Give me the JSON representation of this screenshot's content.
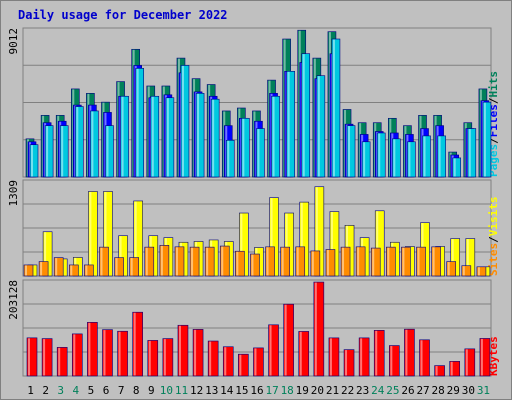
{
  "chart_data": {
    "type": "bar",
    "title": "Daily usage for December 2022",
    "days": [
      {
        "label": "1",
        "weekend": false
      },
      {
        "label": "2",
        "weekend": false
      },
      {
        "label": "3",
        "weekend": true
      },
      {
        "label": "4",
        "weekend": true
      },
      {
        "label": "5",
        "weekend": false
      },
      {
        "label": "6",
        "weekend": false
      },
      {
        "label": "7",
        "weekend": false
      },
      {
        "label": "8",
        "weekend": false
      },
      {
        "label": "9",
        "weekend": false
      },
      {
        "label": "10",
        "weekend": true
      },
      {
        "label": "11",
        "weekend": true
      },
      {
        "label": "12",
        "weekend": false
      },
      {
        "label": "13",
        "weekend": false
      },
      {
        "label": "14",
        "weekend": false
      },
      {
        "label": "15",
        "weekend": false
      },
      {
        "label": "16",
        "weekend": false
      },
      {
        "label": "17",
        "weekend": true
      },
      {
        "label": "18",
        "weekend": true
      },
      {
        "label": "19",
        "weekend": false
      },
      {
        "label": "20",
        "weekend": false
      },
      {
        "label": "21",
        "weekend": false
      },
      {
        "label": "22",
        "weekend": false
      },
      {
        "label": "23",
        "weekend": false
      },
      {
        "label": "24",
        "weekend": true
      },
      {
        "label": "25",
        "weekend": true
      },
      {
        "label": "26",
        "weekend": false
      },
      {
        "label": "27",
        "weekend": false
      },
      {
        "label": "28",
        "weekend": false
      },
      {
        "label": "29",
        "weekend": false
      },
      {
        "label": "30",
        "weekend": false
      },
      {
        "label": "31",
        "weekend": true
      }
    ],
    "panels": [
      {
        "name": "hits-files-pages",
        "ymax_label": "9012",
        "ymax": 9012,
        "legend": [
          {
            "text": "Pages",
            "color": "#00c8e0"
          },
          {
            "text": "/",
            "color": "#000000"
          },
          {
            "text": "Files",
            "color": "#0000ff"
          },
          {
            "text": "/",
            "color": "#000000"
          },
          {
            "text": "Hits",
            "color": "#00805a"
          }
        ],
        "series": [
          {
            "name": "Hits",
            "color": "#00805a",
            "values": [
              2340,
              3780,
              3780,
              5400,
              5130,
              4590,
              5850,
              7830,
              5580,
              5580,
              7290,
              6030,
              5670,
              4050,
              4230,
              4050,
              5940,
              8460,
              9000,
              7290,
              8910,
              4140,
              3330,
              3330,
              3600,
              3150,
              3780,
              3780,
              1530,
              3330,
              5400
            ]
          },
          {
            "name": "Files",
            "color": "#0000ff",
            "values": [
              2160,
              3330,
              3420,
              4410,
              4410,
              3960,
              4950,
              6840,
              4860,
              5040,
              6390,
              5220,
              4950,
              3150,
              3600,
              3420,
              5130,
              6480,
              7020,
              6030,
              7560,
              3240,
              2610,
              2790,
              2700,
              2610,
              2970,
              3150,
              1350,
              2970,
              4680
            ]
          },
          {
            "name": "Pages",
            "color": "#00c8e0",
            "values": [
              1980,
              3150,
              3150,
              4320,
              4050,
              3150,
              4950,
              6660,
              4950,
              4860,
              6840,
              5130,
              4770,
              2250,
              3600,
              2970,
              4950,
              6480,
              7560,
              6210,
              8460,
              3150,
              2160,
              2700,
              2340,
              2160,
              2520,
              2520,
              1170,
              2970,
              4590
            ]
          }
        ]
      },
      {
        "name": "visits-sites",
        "ymax_label": "1309",
        "ymax": 1309,
        "legend": [
          {
            "text": "Sites",
            "color": "#ff8c00"
          },
          {
            "text": "/",
            "color": "#000000"
          },
          {
            "text": "Visits",
            "color": "#ffff00"
          }
        ],
        "series": [
          {
            "name": "Visits",
            "color": "#ffff00",
            "values": [
              154,
              616,
              238,
              259,
              1177,
              1177,
              561,
              1045,
              561,
              534,
              470,
              481,
              502,
              481,
              877,
              397,
              1091,
              877,
              1029,
              1243,
              897,
              706,
              534,
              908,
              470,
              411,
              743,
              411,
              521,
              521,
              128
            ]
          },
          {
            "name": "Sites",
            "color": "#ff8c00",
            "values": [
              154,
              201,
              256,
              154,
              154,
              402,
              256,
              257,
              402,
              427,
              406,
              402,
              402,
              417,
              345,
              306,
              406,
              402,
              406,
              349,
              369,
              402,
              406,
              389,
              402,
              402,
              402,
              406,
              201,
              143,
              128
            ]
          }
        ]
      },
      {
        "name": "kbytes",
        "ymax_label": "203128",
        "ymax": 203128,
        "legend": [
          {
            "text": "KBytes",
            "color": "#ff0000"
          }
        ],
        "series": [
          {
            "name": "KBytes",
            "color": "#ff0000",
            "values": [
              82440,
              80850,
              61890,
              90990,
              115990,
              100190,
              96760,
              137870,
              76910,
              80850,
              109670,
              100770,
              75590,
              63210,
              47110,
              60730,
              110630,
              155190,
              96330,
              203000,
              82370,
              57000,
              82370,
              98700,
              65780,
              101160,
              78210,
              22490,
              31680,
              58670,
              81170
            ]
          }
        ]
      }
    ]
  }
}
